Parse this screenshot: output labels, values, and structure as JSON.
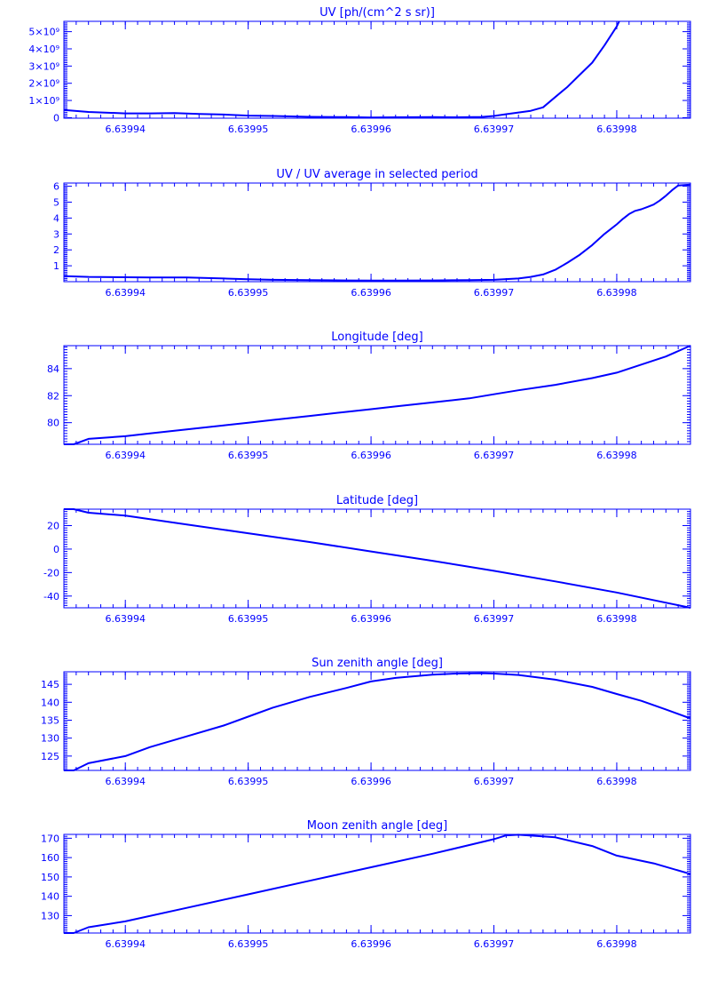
{
  "chart_data": [
    {
      "type": "line",
      "title": "UV [ph/(cm^2 s sr)]",
      "xlabel": "",
      "ylabel": "",
      "xlim": [
        6.639935,
        6.639986
      ],
      "ylim": [
        -30000000,
        5600000000
      ],
      "x_ticks": [
        "6.63994",
        "6.63995",
        "6.63996",
        "6.63997",
        "6.63998"
      ],
      "x_tick_values": [
        6.63994,
        6.63995,
        6.63996,
        6.63997,
        6.63998
      ],
      "y_ticks": [
        "0",
        "1×10⁹",
        "2×10⁹",
        "3×10⁹",
        "4×10⁹",
        "5×10⁹"
      ],
      "y_tick_values": [
        0,
        1000000000,
        2000000000,
        3000000000,
        4000000000,
        5000000000
      ],
      "grid": false,
      "series": [
        {
          "x": [
            6.639935,
            6.639937,
            6.63994,
            6.639942,
            6.639944,
            6.639946,
            6.639948,
            6.63995,
            6.639952,
            6.639955,
            6.639958,
            6.63996,
            6.639962,
            6.639965,
            6.639967,
            6.639969,
            6.63997,
            6.639971,
            6.639972,
            6.639973,
            6.639974,
            6.639975,
            6.639976,
            6.639977,
            6.639978,
            6.639979,
            6.63998,
            6.6399802
          ],
          "y": [
            450000000,
            330000000,
            250000000,
            250000000,
            270000000,
            220000000,
            180000000,
            120000000,
            100000000,
            50000000,
            30000000,
            10000000,
            20000000,
            30000000,
            20000000,
            40000000,
            100000000,
            200000000,
            300000000,
            400000000,
            600000000,
            1200000000,
            1800000000,
            2500000000,
            3200000000,
            4200000000,
            5300000000,
            5600000000
          ]
        }
      ]
    },
    {
      "type": "line",
      "title": "UV / UV average in selected period",
      "xlabel": "",
      "ylabel": "",
      "xlim": [
        6.639935,
        6.639986
      ],
      "ylim": [
        0,
        6.2
      ],
      "x_ticks": [
        "6.63994",
        "6.63995",
        "6.63996",
        "6.63997",
        "6.63998"
      ],
      "x_tick_values": [
        6.63994,
        6.63995,
        6.63996,
        6.63997,
        6.63998
      ],
      "y_ticks": [
        "1",
        "2",
        "3",
        "4",
        "5",
        "6"
      ],
      "y_tick_values": [
        1,
        2,
        3,
        4,
        5,
        6
      ],
      "grid": false,
      "series": [
        {
          "x": [
            6.639935,
            6.639937,
            6.63994,
            6.639942,
            6.639945,
            6.639948,
            6.63995,
            6.639952,
            6.639955,
            6.639958,
            6.63996,
            6.639962,
            6.639965,
            6.639968,
            6.63997,
            6.639972,
            6.639973,
            6.639974,
            6.639975,
            6.639976,
            6.639977,
            6.639978,
            6.639979,
            6.63998,
            6.6399805,
            6.639981,
            6.6399815,
            6.639982,
            6.6399825,
            6.639983,
            6.6399835,
            6.639984,
            6.6399845,
            6.639985,
            6.639986
          ],
          "y": [
            0.35,
            0.3,
            0.28,
            0.27,
            0.26,
            0.2,
            0.15,
            0.12,
            0.1,
            0.08,
            0.07,
            0.07,
            0.08,
            0.1,
            0.12,
            0.2,
            0.3,
            0.45,
            0.75,
            1.2,
            1.7,
            2.3,
            3.0,
            3.6,
            3.95,
            4.25,
            4.45,
            4.55,
            4.7,
            4.85,
            5.1,
            5.4,
            5.75,
            6.05,
            6.1
          ]
        }
      ]
    },
    {
      "type": "line",
      "title": "Longitude [deg]",
      "xlabel": "",
      "ylabel": "",
      "xlim": [
        6.639935,
        6.639986
      ],
      "ylim": [
        78.4,
        85.7
      ],
      "x_ticks": [
        "6.63994",
        "6.63995",
        "6.63996",
        "6.63997",
        "6.63998"
      ],
      "x_tick_values": [
        6.63994,
        6.63995,
        6.63996,
        6.63997,
        6.63998
      ],
      "y_ticks": [
        "80",
        "82",
        "84"
      ],
      "y_tick_values": [
        80,
        82,
        84
      ],
      "grid": false,
      "series": [
        {
          "x": [
            6.639935,
            6.6399358,
            6.639937,
            6.63994,
            6.639942,
            6.639945,
            6.639948,
            6.63995,
            6.639952,
            6.639955,
            6.639958,
            6.63996,
            6.639962,
            6.639965,
            6.639968,
            6.63997,
            6.639972,
            6.639975,
            6.639978,
            6.63998,
            6.639982,
            6.639984,
            6.639986
          ],
          "y": [
            78.4,
            78.4,
            78.8,
            79.0,
            79.2,
            79.5,
            79.8,
            80.0,
            80.2,
            80.5,
            80.8,
            81.0,
            81.2,
            81.5,
            81.8,
            82.1,
            82.4,
            82.8,
            83.3,
            83.7,
            84.3,
            84.9,
            85.7
          ]
        }
      ]
    },
    {
      "type": "line",
      "title": "Latitude [deg]",
      "xlabel": "",
      "ylabel": "",
      "xlim": [
        6.639935,
        6.639986
      ],
      "ylim": [
        -50,
        34
      ],
      "x_ticks": [
        "6.63994",
        "6.63995",
        "6.63996",
        "6.63997",
        "6.63998"
      ],
      "x_tick_values": [
        6.63994,
        6.63995,
        6.63996,
        6.63997,
        6.63998
      ],
      "y_ticks": [
        "-40",
        "-20",
        "0",
        "20"
      ],
      "y_tick_values": [
        -40,
        -20,
        0,
        20
      ],
      "grid": false,
      "series": [
        {
          "x": [
            6.639935,
            6.6399358,
            6.639937,
            6.63994,
            6.639945,
            6.63995,
            6.639955,
            6.63996,
            6.639965,
            6.63997,
            6.639975,
            6.63998,
            6.639986
          ],
          "y": [
            34,
            34,
            31,
            28.5,
            21,
            13.5,
            6,
            -2,
            -10,
            -18.5,
            -27.5,
            -37,
            -50
          ]
        }
      ]
    },
    {
      "type": "line",
      "title": "Sun zenith angle [deg]",
      "xlabel": "",
      "ylabel": "",
      "xlim": [
        6.639935,
        6.639986
      ],
      "ylim": [
        121,
        148.5
      ],
      "x_ticks": [
        "6.63994",
        "6.63995",
        "6.63996",
        "6.63997",
        "6.63998"
      ],
      "x_tick_values": [
        6.63994,
        6.63995,
        6.63996,
        6.63997,
        6.63998
      ],
      "y_ticks": [
        "125",
        "130",
        "135",
        "140",
        "145"
      ],
      "y_tick_values": [
        125,
        130,
        135,
        140,
        145
      ],
      "grid": false,
      "series": [
        {
          "x": [
            6.639935,
            6.6399358,
            6.639937,
            6.63994,
            6.639942,
            6.639945,
            6.639948,
            6.63995,
            6.639952,
            6.639955,
            6.639958,
            6.63996,
            6.639962,
            6.639965,
            6.639967,
            6.639969,
            6.63997,
            6.639972,
            6.639975,
            6.639978,
            6.63998,
            6.639982,
            6.639984,
            6.639986
          ],
          "y": [
            121,
            121,
            123,
            125,
            127.5,
            130.5,
            133.5,
            136,
            138.5,
            141.5,
            144,
            145.8,
            146.8,
            147.7,
            148,
            148.1,
            148.0,
            147.6,
            146.3,
            144.3,
            142.3,
            140.4,
            138.0,
            135.5
          ]
        }
      ]
    },
    {
      "type": "line",
      "title": "Moon zenith angle [deg]",
      "xlabel": "",
      "ylabel": "",
      "xlim": [
        6.639935,
        6.639986
      ],
      "ylim": [
        121,
        172
      ],
      "x_ticks": [
        "6.63994",
        "6.63995",
        "6.63996",
        "6.63997",
        "6.63998"
      ],
      "x_tick_values": [
        6.63994,
        6.63995,
        6.63996,
        6.63997,
        6.63998
      ],
      "y_ticks": [
        "130",
        "140",
        "150",
        "160",
        "170"
      ],
      "y_tick_values": [
        130,
        140,
        150,
        160,
        170
      ],
      "grid": false,
      "series": [
        {
          "x": [
            6.639935,
            6.6399358,
            6.639937,
            6.63994,
            6.639945,
            6.63995,
            6.639955,
            6.63996,
            6.639965,
            6.639968,
            6.63997,
            6.639971,
            6.639972,
            6.639975,
            6.639978,
            6.63998,
            6.639983,
            6.639986
          ],
          "y": [
            121,
            121,
            124,
            127,
            134,
            141,
            148,
            155,
            162,
            166.5,
            169.5,
            171.5,
            171.8,
            170.5,
            166,
            161,
            157,
            151.5
          ]
        }
      ]
    }
  ]
}
